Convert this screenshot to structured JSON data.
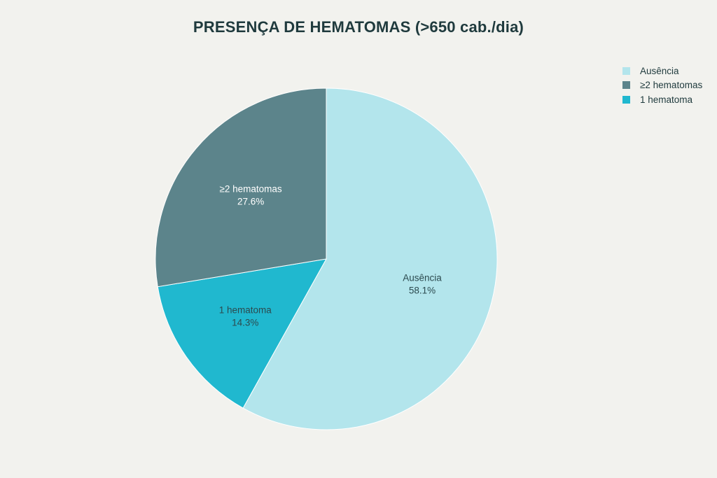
{
  "chart_data": {
    "type": "pie",
    "title": "PRESENÇA DE HEMATOMAS (>650 cab./dia)",
    "slices": [
      {
        "label": "Ausência",
        "value": 58.1,
        "display": "58.1%",
        "color": "#b3e5ec"
      },
      {
        "label": "1 hematoma",
        "value": 14.3,
        "display": "14.3%",
        "color": "#20b8cf"
      },
      {
        "label": "≥2 hematomas",
        "value": 27.6,
        "display": "27.6%",
        "color": "#5c848b"
      }
    ],
    "legend": {
      "placement": "top-right",
      "entries": [
        {
          "label": "Ausência",
          "color": "#b3e5ec"
        },
        {
          "label": "≥2 hematomas",
          "color": "#5c848b"
        },
        {
          "label": "1 hematoma",
          "color": "#20b8cf"
        }
      ]
    },
    "start_angle": "12 o'clock",
    "direction": "clockwise"
  }
}
